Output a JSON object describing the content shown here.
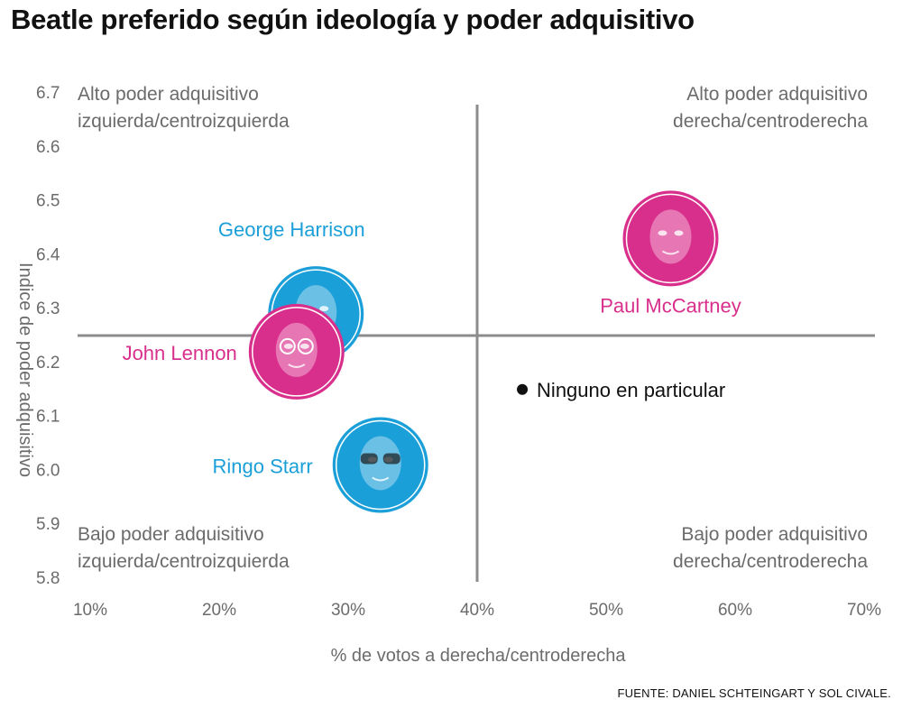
{
  "title": "Beatle preferido según ideología y poder adquisitivo",
  "source": "FUENTE: DANIEL SCHTEINGART Y SOL CIVALE.",
  "colors": {
    "magenta": "#d92f8c",
    "cyan": "#1b9fd8",
    "axis": "#8c8c8c",
    "text": "#6b6b6b",
    "black": "#111111"
  },
  "chart_data": {
    "type": "scatter",
    "title": "Beatle preferido según ideología y poder adquisitivo",
    "xlabel": "% de votos a derecha/centroderecha",
    "ylabel": "Indice de poder adquisitivo",
    "xlim": [
      10,
      70
    ],
    "ylim": [
      5.8,
      6.7
    ],
    "x_ticks": [
      "10%",
      "20%",
      "30%",
      "40%",
      "50%",
      "60%",
      "70%"
    ],
    "y_ticks": [
      "6.7",
      "6.6",
      "6.5",
      "6.4",
      "6.3",
      "6.2",
      "6.1",
      "6.0",
      "5.9",
      "5.8"
    ],
    "divider_x": 40,
    "divider_y": 6.25,
    "quadrants": [
      {
        "position": "top-left",
        "line1": "Alto poder adquisitivo",
        "line2": "izquierda/centroizquierda"
      },
      {
        "position": "top-right",
        "line1": "Alto poder adquisitivo",
        "line2": "derecha/centroderecha"
      },
      {
        "position": "bottom-left",
        "line1": "Bajo poder adquisitivo",
        "line2": "izquierda/centroizquierda"
      },
      {
        "position": "bottom-right",
        "line1": "Bajo poder adquisitivo",
        "line2": "derecha/centroderecha"
      }
    ],
    "points": [
      {
        "label": "Paul McCartney",
        "x": 55,
        "y": 6.43,
        "color": "magenta",
        "marker": "portrait"
      },
      {
        "label": "George Harrison",
        "x": 27.5,
        "y": 6.29,
        "color": "cyan",
        "marker": "portrait"
      },
      {
        "label": "John Lennon",
        "x": 26,
        "y": 6.22,
        "color": "magenta",
        "marker": "portrait"
      },
      {
        "label": "Ringo Starr",
        "x": 32.5,
        "y": 6.01,
        "color": "cyan",
        "marker": "portrait"
      },
      {
        "label": "Ninguno en particular",
        "x": 43.5,
        "y": 6.15,
        "color": "black",
        "marker": "dot"
      }
    ]
  }
}
